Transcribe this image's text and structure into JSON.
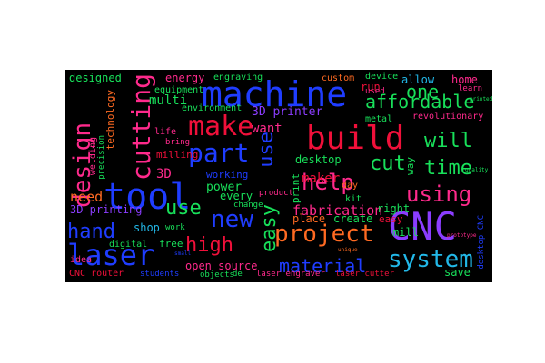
{
  "palette": {
    "background": "#000000",
    "blue": "#1f3dff",
    "red": "#f0103a",
    "green": "#18e05a",
    "pink": "#ff2a8c",
    "orange": "#ff6a22",
    "violet": "#8b3dff",
    "cyan": "#22b8e8"
  },
  "words": {
    "machine": "machine",
    "tool": "tool",
    "CNC": "CNC",
    "build": "build",
    "laser": "laser",
    "cutting": "cutting",
    "make": "make",
    "design": "design",
    "part": "part",
    "project": "project",
    "system": "system",
    "new": "new",
    "using": "using",
    "help": "help",
    "affordable": "affordable",
    "cut": "cut",
    "will": "will",
    "time": "time",
    "one": "one",
    "easy": "easy",
    "material": "material",
    "use_h": "use",
    "use_v": "use",
    "hand": "hand",
    "high": "high",
    "fabrication": "fabrication",
    "want": "want",
    "printer_3d": "3D printer",
    "desktop": "desktop",
    "maker": "maker",
    "multi": "multi",
    "power": "power",
    "every": "every",
    "need": "need",
    "printing_3d": "3D printing",
    "shop": "shop",
    "open_source": "open source",
    "create": "create",
    "place": "place",
    "mill": "mill",
    "allow": "allow",
    "home": "home",
    "learn": "learn",
    "engraving": "engraving",
    "designed": "designed",
    "energy": "energy",
    "equipment": "equipment",
    "environment": "environment",
    "custom": "custom",
    "device": "device",
    "run": "run",
    "revolutionary": "revolutionary",
    "metal": "metal",
    "used": "used",
    "life": "life",
    "technology": "technology",
    "welding": "welding",
    "precision": "precision",
    "milling": "milling",
    "bring": "bring",
    "free": "free",
    "working": "working",
    "digital": "digital",
    "work": "work",
    "change": "change",
    "product": "product",
    "right": "right",
    "day": "day",
    "save": "save",
    "idea": "idea",
    "cnc_router": "CNC router",
    "students": "students",
    "objects": "objects",
    "laser_engraver": "laser engraver",
    "laser_cutter": "laser cutter",
    "print": "print",
    "kit": "kit",
    "way": "way",
    "three_d": "3D",
    "de": "de",
    "desktop_cnc": "desktop CNC",
    "easy_small": "easy",
    "prototype": "prototype",
    "printed": "printed",
    "unique": "unique",
    "small": "small",
    "quality": "quality"
  }
}
